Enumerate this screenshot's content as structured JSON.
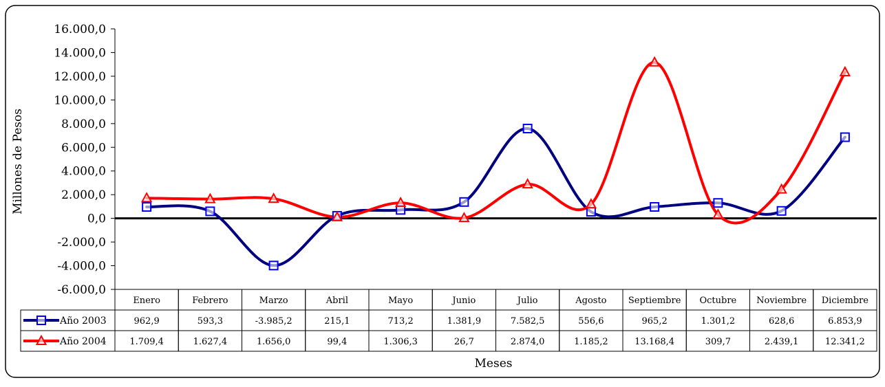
{
  "chart_data": {
    "type": "line",
    "categories": [
      "Enero",
      "Febrero",
      "Marzo",
      "Abril",
      "Mayo",
      "Junio",
      "Julio",
      "Agosto",
      "Septiembre",
      "Octubre",
      "Noviembre",
      "Diciembre"
    ],
    "series": [
      {
        "name": "Año 2003",
        "values": [
          962.9,
          593.3,
          -3985.2,
          215.1,
          713.2,
          1381.9,
          7582.5,
          556.6,
          965.2,
          1301.2,
          628.6,
          6853.9
        ],
        "labels": [
          "962,9",
          "593,3",
          "-3.985,2",
          "215,1",
          "713,2",
          "1.381,9",
          "7.582,5",
          "556,6",
          "965,2",
          "1.301,2",
          "628,6",
          "6.853,9"
        ],
        "color": "#000080",
        "marker": "square",
        "marker_color": "#0000ff"
      },
      {
        "name": "Año 2004",
        "values": [
          1709.4,
          1627.4,
          1656.0,
          99.4,
          1306.3,
          26.7,
          2874.0,
          1185.2,
          13168.4,
          309.7,
          2439.1,
          12341.2
        ],
        "labels": [
          "1.709,4",
          "1.627,4",
          "1.656,0",
          "99,4",
          "1.306,3",
          "26,7",
          "2.874,0",
          "1.185,2",
          "13.168,4",
          "309,7",
          "2.439,1",
          "12.341,2"
        ],
        "color": "#ff0000",
        "marker": "triangle",
        "marker_color": "#ff0000"
      }
    ],
    "ylabel": "Millones de Pesos",
    "xlabel": "Meses",
    "ylim": [
      -6000,
      16000
    ],
    "y_ticks": [
      16000,
      14000,
      12000,
      10000,
      8000,
      6000,
      4000,
      2000,
      0,
      -2000,
      -4000,
      -6000
    ],
    "y_tick_labels": [
      "16.000,0",
      "14.000,0",
      "12.000,0",
      "10.000,0",
      "8.000,0",
      "6.000,0",
      "4.000,0",
      "2.000,0",
      "0,0",
      "-2.000,0",
      "-4.000,0",
      "-6.000,0"
    ],
    "data_table": true,
    "grid": false,
    "smoothed": true
  }
}
